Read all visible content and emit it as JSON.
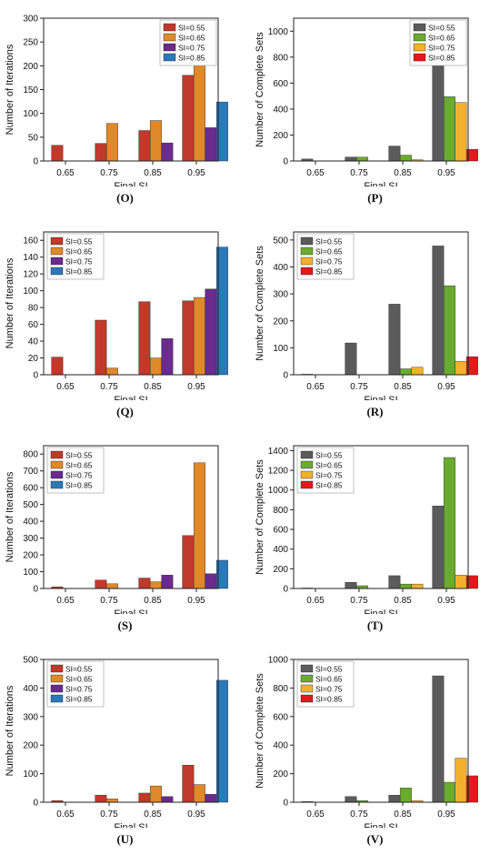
{
  "colors": {
    "iter": [
      "#c0392b",
      "#e0892a",
      "#6a2a8e",
      "#2b79b8"
    ],
    "sets": [
      "#5b5b5b",
      "#6aab2e",
      "#f2b02c",
      "#e3191c"
    ]
  },
  "chart_data": [
    {
      "id": "O",
      "caption": "(O)",
      "type": "bar",
      "xlabel": "Final SI",
      "ylabel": "Number of Iterations",
      "categories": [
        "0.65",
        "0.75",
        "0.85",
        "0.95"
      ],
      "ylim": [
        0,
        300
      ],
      "yticks": [
        0,
        50,
        100,
        150,
        200,
        250,
        300
      ],
      "palette": "iter",
      "legend": "top-right-inside",
      "series": [
        {
          "name": "SI=0.55",
          "values": [
            33,
            37,
            64,
            180
          ]
        },
        {
          "name": "SI=0.65",
          "values": [
            0,
            79,
            85,
            265
          ]
        },
        {
          "name": "SI=0.75",
          "values": [
            0,
            0,
            38,
            70
          ]
        },
        {
          "name": "SI=0.85",
          "values": [
            0,
            0,
            0,
            124
          ]
        }
      ]
    },
    {
      "id": "P",
      "caption": "(P)",
      "type": "bar",
      "xlabel": "Final SI",
      "ylabel": "Number of Complete Sets",
      "categories": [
        "0.65",
        "0.75",
        "0.85",
        "0.95"
      ],
      "ylim": [
        0,
        1100
      ],
      "yticks": [
        0,
        200,
        400,
        600,
        800,
        1000
      ],
      "palette": "sets",
      "legend": "top-right-inside",
      "series": [
        {
          "name": "SI=0.55",
          "values": [
            15,
            30,
            115,
            935
          ]
        },
        {
          "name": "SI=0.65",
          "values": [
            0,
            30,
            45,
            495
          ]
        },
        {
          "name": "SI=0.75",
          "values": [
            0,
            0,
            10,
            450
          ]
        },
        {
          "name": "SI=0.85",
          "values": [
            0,
            0,
            0,
            90
          ]
        }
      ]
    },
    {
      "id": "Q",
      "caption": "(Q)",
      "type": "bar",
      "xlabel": "Final SI",
      "ylabel": "Number of Iterations",
      "categories": [
        "0.65",
        "0.75",
        "0.85",
        "0.95"
      ],
      "ylim": [
        0,
        170
      ],
      "yticks": [
        0,
        20,
        40,
        60,
        80,
        100,
        120,
        140,
        160
      ],
      "palette": "iter",
      "legend": "top-left-inside",
      "series": [
        {
          "name": "SI=0.55",
          "values": [
            21,
            65,
            87,
            88
          ]
        },
        {
          "name": "SI=0.65",
          "values": [
            0,
            8,
            20,
            92
          ]
        },
        {
          "name": "SI=0.75",
          "values": [
            0,
            0,
            43,
            102
          ]
        },
        {
          "name": "SI=0.85",
          "values": [
            0,
            0,
            0,
            152
          ]
        }
      ]
    },
    {
      "id": "R",
      "caption": "(R)",
      "type": "bar",
      "xlabel": "Final SI",
      "ylabel": "Number of Complete Sets",
      "categories": [
        "0.65",
        "0.75",
        "0.85",
        "0.95"
      ],
      "ylim": [
        0,
        530
      ],
      "yticks": [
        0,
        100,
        200,
        300,
        400,
        500
      ],
      "palette": "sets",
      "legend": "top-left-inside",
      "series": [
        {
          "name": "SI=0.55",
          "values": [
            2,
            118,
            262,
            478
          ]
        },
        {
          "name": "SI=0.65",
          "values": [
            0,
            0,
            22,
            330
          ]
        },
        {
          "name": "SI=0.75",
          "values": [
            0,
            0,
            28,
            50
          ]
        },
        {
          "name": "SI=0.85",
          "values": [
            0,
            0,
            0,
            67
          ]
        }
      ]
    },
    {
      "id": "S",
      "caption": "(S)",
      "type": "bar",
      "xlabel": "Final SI",
      "ylabel": "Number of Iterations",
      "categories": [
        "0.65",
        "0.75",
        "0.85",
        "0.95"
      ],
      "ylim": [
        0,
        850
      ],
      "yticks": [
        0,
        100,
        200,
        300,
        400,
        500,
        600,
        700,
        800
      ],
      "palette": "iter",
      "legend": "top-left-inside",
      "series": [
        {
          "name": "SI=0.55",
          "values": [
            10,
            50,
            62,
            315
          ]
        },
        {
          "name": "SI=0.65",
          "values": [
            0,
            28,
            40,
            748
          ]
        },
        {
          "name": "SI=0.75",
          "values": [
            0,
            0,
            80,
            88
          ]
        },
        {
          "name": "SI=0.85",
          "values": [
            0,
            0,
            0,
            168
          ]
        }
      ]
    },
    {
      "id": "T",
      "caption": "(T)",
      "type": "bar",
      "xlabel": "Final SI",
      "ylabel": "Number of Complete Sets",
      "categories": [
        "0.65",
        "0.75",
        "0.85",
        "0.95"
      ],
      "ylim": [
        0,
        1450
      ],
      "yticks": [
        0,
        200,
        400,
        600,
        800,
        1000,
        1200,
        1400
      ],
      "palette": "sets",
      "legend": "top-left-inside",
      "series": [
        {
          "name": "SI=0.55",
          "values": [
            5,
            62,
            130,
            838
          ]
        },
        {
          "name": "SI=0.65",
          "values": [
            0,
            28,
            45,
            1330
          ]
        },
        {
          "name": "SI=0.75",
          "values": [
            0,
            0,
            45,
            135
          ]
        },
        {
          "name": "SI=0.85",
          "values": [
            0,
            0,
            0,
            130
          ]
        }
      ]
    },
    {
      "id": "U",
      "caption": "(U)",
      "type": "bar",
      "xlabel": "Final SI",
      "ylabel": "Number of Iterations",
      "categories": [
        "0.65",
        "0.75",
        "0.85",
        "0.95"
      ],
      "ylim": [
        0,
        500
      ],
      "yticks": [
        0,
        100,
        200,
        300,
        400,
        500
      ],
      "palette": "iter",
      "legend": "top-left-inside",
      "series": [
        {
          "name": "SI=0.55",
          "values": [
            6,
            25,
            32,
            130
          ]
        },
        {
          "name": "SI=0.65",
          "values": [
            0,
            12,
            57,
            62
          ]
        },
        {
          "name": "SI=0.75",
          "values": [
            0,
            0,
            20,
            28
          ]
        },
        {
          "name": "SI=0.85",
          "values": [
            0,
            0,
            0,
            427
          ]
        }
      ]
    },
    {
      "id": "V",
      "caption": "(V)",
      "type": "bar",
      "xlabel": "Final SI",
      "ylabel": "Number of Complete Sets",
      "categories": [
        "0.65",
        "0.75",
        "0.85",
        "0.95"
      ],
      "ylim": [
        0,
        1000
      ],
      "yticks": [
        0,
        200,
        400,
        600,
        800,
        1000
      ],
      "palette": "sets",
      "legend": "top-left-inside",
      "series": [
        {
          "name": "SI=0.55",
          "values": [
            5,
            40,
            50,
            885
          ]
        },
        {
          "name": "SI=0.65",
          "values": [
            0,
            12,
            100,
            140
          ]
        },
        {
          "name": "SI=0.75",
          "values": [
            0,
            0,
            12,
            308
          ]
        },
        {
          "name": "SI=0.85",
          "values": [
            0,
            0,
            0,
            185
          ]
        }
      ]
    }
  ]
}
